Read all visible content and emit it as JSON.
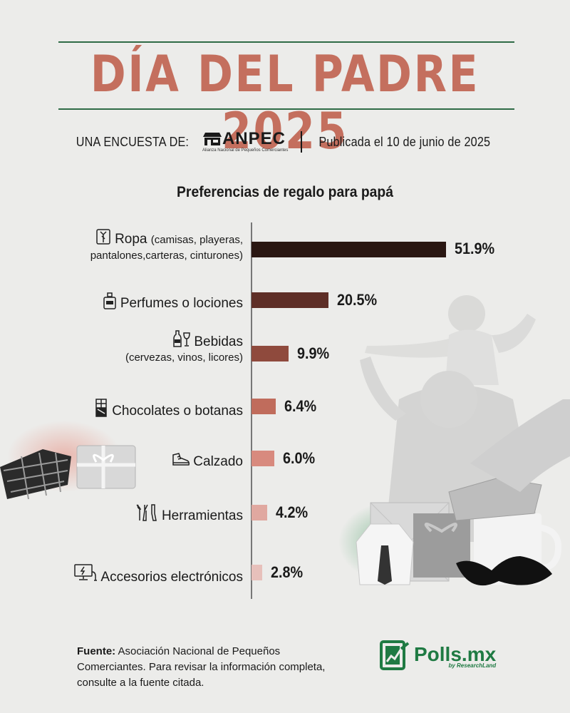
{
  "header": {
    "title": "DÍA DEL PADRE 2025",
    "survey_by": "UNA ENCUESTA DE:",
    "org_logo_text": "ANPEC",
    "org_logo_sub": "Alianza Nacional de Pequeños Comerciantes",
    "published": "Publicada el 10 de junio de 2025"
  },
  "chart_data": {
    "type": "bar",
    "orientation": "horizontal",
    "title": "Preferencias de regalo para papá",
    "categories": [
      "Ropa (camisas, playeras, pantalones,carteras, cinturones)",
      "Perfumes o lociones",
      "Bebidas (cervezas, vinos, licores)",
      "Chocolates o botanas",
      "Calzado",
      "Herramientas",
      "Accesorios electrónicos"
    ],
    "category_labels": [
      {
        "main": "Ropa",
        "sub1": "(camisas, playeras,",
        "sub2": "pantalones,carteras, cinturones)",
        "icon": "shirt-icon"
      },
      {
        "main": "Perfumes o lociones",
        "icon": "perfume-icon"
      },
      {
        "main": "Bebidas",
        "sub1": "(cervezas, vinos, licores)",
        "icon": "drinks-icon"
      },
      {
        "main": "Chocolates o botanas",
        "icon": "chocolate-icon"
      },
      {
        "main": "Calzado",
        "icon": "shoe-icon"
      },
      {
        "main": "Herramientas",
        "icon": "tools-icon"
      },
      {
        "main": "Accesorios electrónicos",
        "icon": "computer-icon"
      }
    ],
    "values": [
      51.9,
      20.5,
      9.9,
      6.4,
      6.0,
      4.2,
      2.8
    ],
    "value_labels": [
      "51.9%",
      "20.5%",
      "9.9%",
      "6.4%",
      "6.0%",
      "4.2%",
      "2.8%"
    ],
    "unit": "%",
    "xlim": [
      0,
      51.9
    ],
    "bar_colors": [
      "#2a1712",
      "#5e2e26",
      "#8f4a3d",
      "#c06c5c",
      "#d88a7e",
      "#e0a8a0",
      "#e7c0bb"
    ],
    "grid": false,
    "legend": "none"
  },
  "footer": {
    "source_label": "Fuente:",
    "source_text": " Asociación Nacional de Pequeños Comerciantes. Para revisar la información completa, consulte a la fuente citada.",
    "brand_name": "Polls.mx",
    "brand_tag": "by ResearchLand"
  },
  "colors": {
    "title": "#c46f5e",
    "rule": "#2f6b46",
    "brand": "#1f7a43",
    "background": "#ececea"
  }
}
